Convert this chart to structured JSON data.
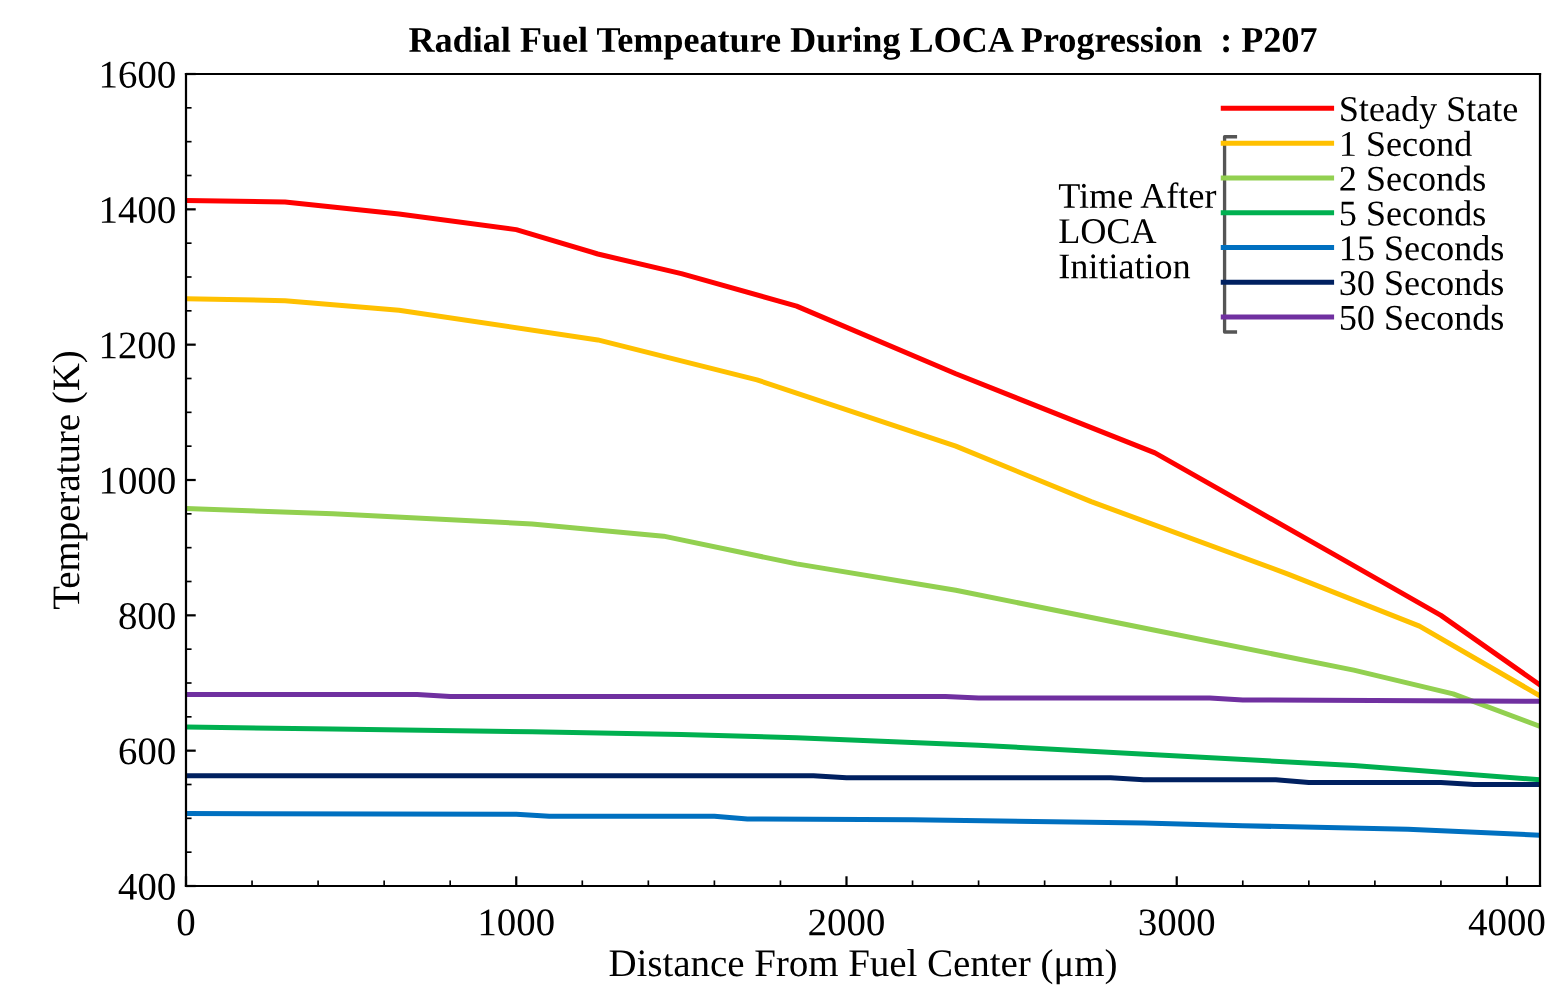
{
  "chart_data": {
    "type": "line",
    "title": "Radial Fuel Tempeature During LOCA Progression  : P207",
    "xlabel": "Distance From Fuel Center (μm)",
    "ylabel": "Temperature (K)",
    "legend_title": "Time After\nLOCA\nInitiation",
    "xlim": [
      0,
      4100
    ],
    "xticks": [
      0,
      1000,
      2000,
      3000,
      4000
    ],
    "ylim": [
      400,
      1600
    ],
    "yticks": [
      400,
      600,
      800,
      1000,
      1200,
      1400,
      1600
    ],
    "grid": false,
    "legend": "top right",
    "marker": "none",
    "line_style": "solid",
    "series": [
      {
        "name": "Steady State",
        "color": "#ff0000",
        "x": [
          0,
          300,
          645,
          1000,
          1247,
          1500,
          1849,
          2331,
          2934,
          3133,
          3476,
          3800,
          4100
        ],
        "values": [
          1413,
          1411,
          1393,
          1370,
          1334,
          1305,
          1257,
          1157,
          1040,
          985,
          890,
          800,
          697
        ]
      },
      {
        "name": "1 Second",
        "color": "#ffc000",
        "x": [
          0,
          300,
          645,
          1247,
          1729,
          2331,
          2741,
          3337,
          3735,
          4100
        ],
        "values": [
          1268,
          1265,
          1251,
          1207,
          1148,
          1050,
          968,
          861,
          784,
          681
        ]
      },
      {
        "name": "2 Seconds",
        "color": "#92d050",
        "x": [
          0,
          445,
          1048,
          1446,
          1849,
          2331,
          2934,
          3536,
          3837,
          4100
        ],
        "values": [
          958,
          950,
          935,
          917,
          876,
          837,
          778,
          719,
          684,
          636
        ]
      },
      {
        "name": "5 Seconds",
        "color": "#00b050",
        "x": [
          0,
          445,
          1048,
          1500,
          1849,
          2400,
          2934,
          3536,
          4100
        ],
        "values": [
          635,
          632,
          628,
          624,
          619,
          608,
          594,
          578,
          557
        ]
      },
      {
        "name": "15 Seconds",
        "color": "#0070c0",
        "x": [
          0,
          1000,
          1100,
          1600,
          1700,
          2200,
          2900,
          3200,
          3700,
          4100
        ],
        "values": [
          507,
          506,
          503,
          503,
          499,
          498,
          493,
          489,
          484,
          475
        ]
      },
      {
        "name": "30 Seconds",
        "color": "#002060",
        "x": [
          0,
          1900,
          2000,
          2800,
          2900,
          3300,
          3400,
          3800,
          3900,
          4100
        ],
        "values": [
          563,
          563,
          560,
          560,
          557,
          557,
          553,
          553,
          550,
          550
        ]
      },
      {
        "name": "50 Seconds",
        "color": "#7030a0",
        "x": [
          0,
          700,
          800,
          2300,
          2400,
          3100,
          3200,
          4100
        ],
        "values": [
          683,
          683,
          680,
          680,
          678,
          678,
          675,
          673
        ]
      }
    ]
  }
}
